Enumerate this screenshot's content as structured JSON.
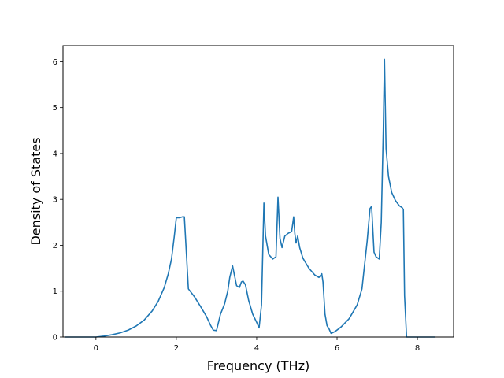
{
  "chart_data": {
    "type": "line",
    "title": "",
    "xlabel": "Frequency (THz)",
    "ylabel": "Density of States",
    "xlim": [
      -0.82,
      8.9
    ],
    "ylim": [
      0,
      6.35
    ],
    "xticks": [
      0,
      2,
      4,
      6,
      8
    ],
    "yticks": [
      0,
      1,
      2,
      3,
      4,
      5,
      6
    ],
    "grid": false,
    "legend": "none",
    "line_color": "#1f77b4",
    "series": [
      {
        "x": [
          -0.78,
          -0.5,
          -0.2,
          0.0,
          0.2,
          0.4,
          0.6,
          0.8,
          1.0,
          1.2,
          1.4,
          1.55,
          1.7,
          1.8,
          1.88,
          1.95,
          2.0,
          2.08,
          2.15,
          2.2,
          2.3,
          2.45,
          2.6,
          2.75,
          2.85,
          2.92,
          3.0,
          3.1,
          3.2,
          3.28,
          3.33,
          3.4,
          3.5,
          3.57,
          3.62,
          3.66,
          3.72,
          3.8,
          3.9,
          4.0,
          4.06,
          4.12,
          4.18,
          4.22,
          4.3,
          4.4,
          4.48,
          4.53,
          4.58,
          4.63,
          4.7,
          4.78,
          4.87,
          4.92,
          4.95,
          4.98,
          5.02,
          5.07,
          5.15,
          5.3,
          5.45,
          5.55,
          5.62,
          5.65,
          5.7,
          5.75,
          5.8,
          5.85,
          5.95,
          6.1,
          6.3,
          6.5,
          6.62,
          6.75,
          6.82,
          6.86,
          6.92,
          6.97,
          7.05,
          7.1,
          7.15,
          7.18,
          7.22,
          7.28,
          7.36,
          7.45,
          7.55,
          7.62,
          7.65,
          7.68,
          7.73,
          7.85,
          8.0,
          8.25,
          8.45
        ],
        "y": [
          0.0,
          0.0,
          0.0,
          0.0,
          0.02,
          0.05,
          0.09,
          0.15,
          0.24,
          0.37,
          0.57,
          0.78,
          1.08,
          1.38,
          1.7,
          2.2,
          2.6,
          2.6,
          2.62,
          2.62,
          1.05,
          0.88,
          0.67,
          0.45,
          0.26,
          0.15,
          0.14,
          0.5,
          0.72,
          1.0,
          1.3,
          1.55,
          1.12,
          1.08,
          1.2,
          1.22,
          1.14,
          0.8,
          0.5,
          0.32,
          0.2,
          0.7,
          2.92,
          2.2,
          1.8,
          1.7,
          1.75,
          3.05,
          2.15,
          1.95,
          2.2,
          2.26,
          2.3,
          2.62,
          2.25,
          2.05,
          2.2,
          1.95,
          1.72,
          1.5,
          1.35,
          1.3,
          1.38,
          1.2,
          0.5,
          0.25,
          0.18,
          0.08,
          0.12,
          0.22,
          0.4,
          0.7,
          1.05,
          2.1,
          2.8,
          2.85,
          1.85,
          1.75,
          1.7,
          2.5,
          4.5,
          6.05,
          4.1,
          3.5,
          3.15,
          2.98,
          2.86,
          2.82,
          2.78,
          0.9,
          0.0,
          0.0,
          0.0,
          0.0,
          0.0
        ]
      }
    ]
  }
}
